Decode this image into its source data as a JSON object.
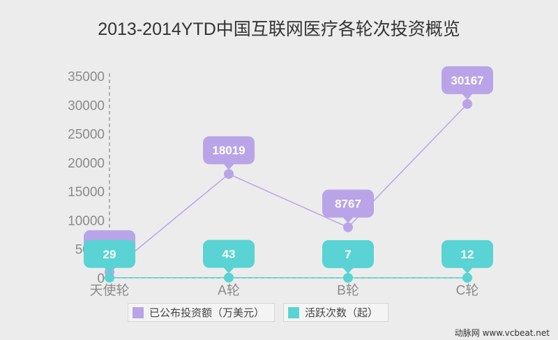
{
  "title": "2013-2014YTD中国互联网医疗各轮次投资概览",
  "watermark": "动脉网 www.vcbeat.net",
  "colors": {
    "series1": "#b9a4e8",
    "series2": "#59d3d3",
    "axis": "#999999"
  },
  "chart_data": {
    "type": "line",
    "categories": [
      "天使轮",
      "A轮",
      "B轮",
      "C轮"
    ],
    "ylim": [
      0,
      35000
    ],
    "yticks": [
      0,
      5000,
      10000,
      15000,
      20000,
      25000,
      30000,
      35000
    ],
    "series": [
      {
        "name": "已公布投资额（万美元）",
        "values": [
          1000,
          18019,
          8767,
          30167
        ],
        "labels": [
          "",
          "18019",
          "8767",
          "30167"
        ]
      },
      {
        "name": "活跃次数（起）",
        "values": [
          29,
          43,
          7,
          12
        ],
        "labels": [
          "29",
          "43",
          "7",
          "12"
        ]
      }
    ],
    "legend_position": "bottom",
    "grid": false
  }
}
